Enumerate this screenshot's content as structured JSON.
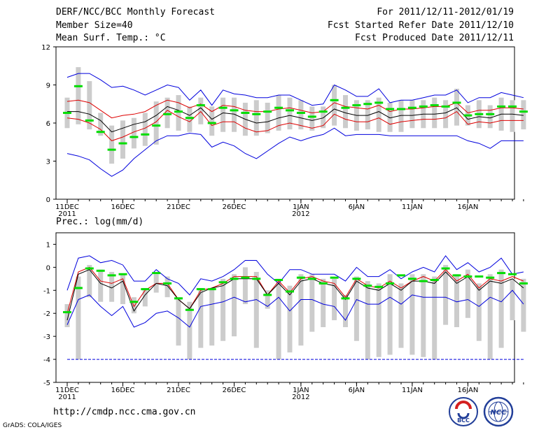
{
  "header": {
    "title": "DERF/NCC/BCC Monthly Forecast",
    "member": "Member Size=40",
    "variable": "Mean Surf. Temp.: °C",
    "period": "For 2011/12/11-2012/01/19",
    "started": "Fcst Started Refer Date 2011/12/10",
    "produced": "Fcst Produced Date 2011/12/11"
  },
  "footer": {
    "url": "http://cmdp.ncc.cma.gov.cn",
    "credit": "GrADS: COLA/IGES",
    "logo_bcc": "BCC",
    "logo_ncc": "NCC"
  },
  "colors": {
    "max": "#0000dd",
    "pct": "#dd0000",
    "median": "#000000",
    "obs": "#00dd00",
    "box": "#cccccc"
  },
  "chart_data": [
    {
      "type": "line",
      "title": "Mean Surf. Temp.: °C",
      "ylim": [
        0,
        12
      ],
      "yticks": [
        0,
        3,
        6,
        9,
        12
      ],
      "ytick_labels": [
        "0",
        "3",
        "6",
        "9",
        "12"
      ],
      "xtick_labels": [
        {
          "day": 1,
          "label": "11DEC",
          "sub": "2011"
        },
        {
          "day": 6,
          "label": "16DEC"
        },
        {
          "day": 11,
          "label": "21DEC"
        },
        {
          "day": 16,
          "label": "26DEC"
        },
        {
          "day": 22,
          "label": "1JAN",
          "sub": "2012"
        },
        {
          "day": 27,
          "label": "6JAN"
        },
        {
          "day": 32,
          "label": "11JAN"
        },
        {
          "day": 37,
          "label": "16JAN"
        }
      ],
      "series": [
        {
          "name": "max",
          "values": [
            9.6,
            9.9,
            9.9,
            9.4,
            8.8,
            8.9,
            8.6,
            8.2,
            8.6,
            9.0,
            8.8,
            7.8,
            8.6,
            7.4,
            8.6,
            8.3,
            8.2,
            8.0,
            8.0,
            8.2,
            8.2,
            7.8,
            7.4,
            7.5,
            9.0,
            8.6,
            8.1,
            8.1,
            8.7,
            7.6,
            7.8,
            7.8,
            8.0,
            8.2,
            8.2,
            8.6,
            7.6,
            8.0,
            8.0,
            8.4,
            8.2,
            8.0
          ]
        },
        {
          "name": "p75",
          "values": [
            7.7,
            7.8,
            7.6,
            7.0,
            6.4,
            6.6,
            6.7,
            6.9,
            7.4,
            7.8,
            7.6,
            7.2,
            7.5,
            6.9,
            7.4,
            7.3,
            7.0,
            6.9,
            6.9,
            7.1,
            7.2,
            7.0,
            6.8,
            6.9,
            7.6,
            7.3,
            7.2,
            7.1,
            7.4,
            6.9,
            7.1,
            7.1,
            7.2,
            7.3,
            7.3,
            7.6,
            6.8,
            7.0,
            7.0,
            7.2,
            7.2,
            7.1
          ]
        },
        {
          "name": "median",
          "values": [
            6.9,
            6.9,
            6.7,
            6.2,
            5.3,
            5.6,
            5.9,
            6.1,
            6.6,
            7.3,
            7.0,
            6.6,
            7.2,
            6.3,
            6.8,
            6.7,
            6.3,
            6.0,
            6.1,
            6.4,
            6.6,
            6.4,
            6.2,
            6.4,
            7.1,
            6.8,
            6.6,
            6.6,
            6.9,
            6.4,
            6.6,
            6.6,
            6.7,
            6.7,
            6.8,
            7.2,
            6.3,
            6.5,
            6.4,
            6.7,
            6.7,
            6.6
          ]
        },
        {
          "name": "p25",
          "values": [
            6.4,
            6.3,
            6.0,
            5.5,
            4.6,
            4.9,
            5.3,
            5.6,
            6.1,
            7.0,
            6.5,
            6.1,
            6.9,
            5.8,
            6.1,
            6.1,
            5.6,
            5.3,
            5.4,
            5.8,
            6.0,
            5.8,
            5.6,
            5.8,
            6.7,
            6.3,
            6.1,
            6.1,
            6.4,
            5.9,
            6.1,
            6.2,
            6.3,
            6.3,
            6.4,
            6.9,
            5.9,
            6.1,
            6.0,
            6.2,
            6.2,
            6.2
          ]
        },
        {
          "name": "min",
          "values": [
            3.6,
            3.4,
            3.1,
            2.4,
            1.8,
            2.3,
            3.2,
            3.9,
            4.6,
            5.0,
            5.0,
            5.2,
            5.1,
            4.1,
            4.5,
            4.2,
            3.6,
            3.2,
            3.8,
            4.4,
            4.9,
            4.6,
            4.9,
            5.1,
            5.6,
            5.0,
            5.1,
            5.1,
            5.1,
            5.0,
            5.0,
            5.0,
            5.0,
            5.0,
            5.0,
            5.0,
            4.6,
            4.4,
            4.0,
            4.6,
            4.6,
            4.6
          ]
        },
        {
          "name": "box_low",
          "values": [
            5.6,
            5.9,
            5.5,
            5.0,
            2.8,
            3.2,
            4.0,
            4.2,
            4.3,
            5.6,
            5.4,
            5.3,
            5.9,
            5.0,
            5.3,
            5.3,
            5.0,
            5.0,
            5.2,
            5.4,
            5.5,
            5.5,
            5.4,
            5.6,
            5.8,
            5.6,
            5.4,
            5.5,
            5.3,
            5.3,
            5.3,
            5.6,
            5.6,
            5.6,
            5.6,
            5.8,
            5.8,
            5.6,
            5.6,
            5.4,
            5.3,
            5.5
          ]
        },
        {
          "name": "box_high",
          "values": [
            8.0,
            10.4,
            9.3,
            6.8,
            5.8,
            6.2,
            6.4,
            6.8,
            7.7,
            8.0,
            8.2,
            7.3,
            8.0,
            7.3,
            8.0,
            8.0,
            7.6,
            7.8,
            7.6,
            8.2,
            8.0,
            7.8,
            7.3,
            7.3,
            9.0,
            8.2,
            7.8,
            7.8,
            8.0,
            7.6,
            7.8,
            7.8,
            7.8,
            8.0,
            7.8,
            8.7,
            7.4,
            7.8,
            7.4,
            8.0,
            7.8,
            7.8
          ]
        },
        {
          "name": "obs",
          "values": [
            6.8,
            8.9,
            6.2,
            5.3,
            3.9,
            4.4,
            4.9,
            5.1,
            5.8,
            6.7,
            6.9,
            6.4,
            7.4,
            6.0,
            7.2,
            7.0,
            6.8,
            6.7,
            6.9,
            7.2,
            7.0,
            6.8,
            6.5,
            6.9,
            7.8,
            7.2,
            7.4,
            7.5,
            7.6,
            7.1,
            7.1,
            7.2,
            7.3,
            7.4,
            7.3,
            7.6,
            6.6,
            6.7,
            6.7,
            7.3,
            7.3,
            6.9
          ]
        }
      ]
    },
    {
      "type": "line",
      "title": "Prec.: log(mm/d)",
      "ylim": [
        -5,
        1.5
      ],
      "yticks": [
        -5,
        -4,
        -3,
        -2,
        -1,
        0,
        1
      ],
      "ytick_labels": [
        "-5",
        "-4",
        "-3",
        "-2",
        "-1",
        "0",
        "1"
      ],
      "xtick_labels": [
        {
          "day": 1,
          "label": "11DEC",
          "sub": "2011"
        },
        {
          "day": 6,
          "label": "16DEC"
        },
        {
          "day": 11,
          "label": "21DEC"
        },
        {
          "day": 16,
          "label": "26DEC"
        },
        {
          "day": 22,
          "label": "1JAN",
          "sub": "2012"
        },
        {
          "day": 27,
          "label": "6JAN"
        },
        {
          "day": 32,
          "label": "11JAN"
        },
        {
          "day": 37,
          "label": "16JAN"
        }
      ],
      "baseline": -4.0,
      "series": [
        {
          "name": "max",
          "values": [
            -1.0,
            0.4,
            0.5,
            0.2,
            0.3,
            0.1,
            -0.6,
            -0.6,
            -0.1,
            -0.5,
            -0.7,
            -1.2,
            -0.5,
            -0.6,
            -0.4,
            -0.1,
            0.3,
            0.3,
            -0.3,
            -0.7,
            -0.1,
            -0.1,
            -0.3,
            -0.3,
            -0.3,
            -0.6,
            0.0,
            -0.4,
            -0.4,
            -0.1,
            -0.5,
            -0.2,
            0.0,
            -0.2,
            0.5,
            -0.1,
            0.2,
            -0.2,
            0.0,
            0.4,
            -0.3,
            -0.2
          ]
        },
        {
          "name": "p75",
          "values": [
            -2.0,
            -0.2,
            0.0,
            -0.6,
            -0.7,
            -0.5,
            -1.7,
            -1.0,
            -0.7,
            -0.7,
            -1.4,
            -1.8,
            -1.0,
            -0.9,
            -0.7,
            -0.4,
            -0.4,
            -0.4,
            -1.2,
            -0.6,
            -1.1,
            -0.5,
            -0.4,
            -0.6,
            -0.7,
            -1.3,
            -0.5,
            -0.8,
            -0.9,
            -0.6,
            -0.9,
            -0.6,
            -0.4,
            -0.6,
            -0.1,
            -0.6,
            -0.3,
            -0.9,
            -0.5,
            -0.6,
            -0.4,
            -0.6
          ]
        },
        {
          "name": "median",
          "values": [
            -2.3,
            -0.3,
            -0.1,
            -0.7,
            -0.9,
            -0.6,
            -1.9,
            -1.2,
            -0.7,
            -0.8,
            -1.4,
            -1.8,
            -1.1,
            -0.9,
            -0.8,
            -0.5,
            -0.5,
            -0.5,
            -1.2,
            -0.7,
            -1.2,
            -0.6,
            -0.5,
            -0.7,
            -0.8,
            -1.4,
            -0.6,
            -0.9,
            -1.0,
            -0.7,
            -1.0,
            -0.6,
            -0.6,
            -0.7,
            -0.2,
            -0.7,
            -0.4,
            -1.0,
            -0.6,
            -0.7,
            -0.5,
            -0.9
          ]
        },
        {
          "name": "min",
          "values": [
            -2.5,
            -1.4,
            -1.2,
            -1.7,
            -2.1,
            -1.7,
            -2.6,
            -2.4,
            -2.0,
            -1.9,
            -2.2,
            -2.6,
            -1.7,
            -1.6,
            -1.5,
            -1.3,
            -1.5,
            -1.4,
            -1.7,
            -1.3,
            -1.9,
            -1.4,
            -1.4,
            -1.6,
            -1.7,
            -2.3,
            -1.4,
            -1.6,
            -1.6,
            -1.3,
            -1.6,
            -1.2,
            -1.3,
            -1.3,
            -1.3,
            -1.5,
            -1.4,
            -1.7,
            -1.3,
            -1.5,
            -1.0,
            -1.6
          ]
        },
        {
          "name": "box_low",
          "values": [
            -2.6,
            -4.0,
            -1.3,
            -1.5,
            -1.5,
            -1.6,
            -2.0,
            -1.7,
            -1.1,
            -1.3,
            -3.4,
            -4.0,
            -3.5,
            -3.4,
            -3.2,
            -3.0,
            -1.6,
            -3.5,
            -1.8,
            -4.0,
            -3.7,
            -3.4,
            -2.8,
            -2.6,
            -2.3,
            -2.6,
            -3.2,
            -4.0,
            -3.9,
            -3.8,
            -3.5,
            -3.8,
            -3.9,
            -4.0,
            -2.5,
            -2.6,
            -2.2,
            -3.2,
            -4.0,
            -3.5,
            -2.3,
            -2.8
          ]
        },
        {
          "name": "box_high",
          "values": [
            -1.6,
            -0.4,
            0.1,
            -0.1,
            -0.2,
            -0.3,
            -1.3,
            -0.9,
            -0.3,
            -0.4,
            -1.3,
            -1.5,
            -0.9,
            -0.9,
            -0.5,
            -0.3,
            0.0,
            -0.2,
            -1.0,
            -0.5,
            -0.8,
            -0.3,
            -0.3,
            -0.5,
            -0.5,
            -1.2,
            -0.4,
            -0.6,
            -0.7,
            -0.3,
            -0.7,
            -0.3,
            -0.3,
            -0.4,
            0.1,
            -0.3,
            -0.1,
            -0.7,
            -0.3,
            -0.1,
            -0.5,
            -0.5
          ]
        },
        {
          "name": "obs",
          "values": [
            -1.95,
            -0.9,
            -0.05,
            -0.15,
            -0.35,
            -0.3,
            -1.5,
            -0.95,
            -0.25,
            -0.7,
            -1.35,
            -1.85,
            -0.95,
            -0.95,
            -0.65,
            -0.5,
            -0.45,
            -0.5,
            -1.2,
            -0.55,
            -1.05,
            -0.45,
            -0.5,
            -0.7,
            -0.45,
            -1.35,
            -0.5,
            -0.8,
            -0.85,
            -0.7,
            -0.35,
            -0.5,
            -0.6,
            -0.55,
            -0.05,
            -0.35,
            -0.4,
            -0.4,
            -0.45,
            -0.25,
            -0.3,
            -0.7
          ]
        }
      ]
    }
  ]
}
